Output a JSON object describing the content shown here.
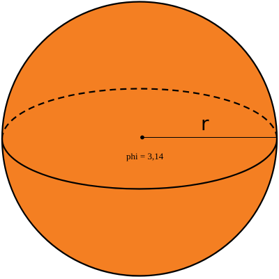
{
  "diagram": {
    "radius_label": "r",
    "formula_label": "phi = 3,14"
  },
  "colors": {
    "sphere_fill": "#f47f22",
    "outline": "#000000",
    "background": "#ffffff"
  }
}
